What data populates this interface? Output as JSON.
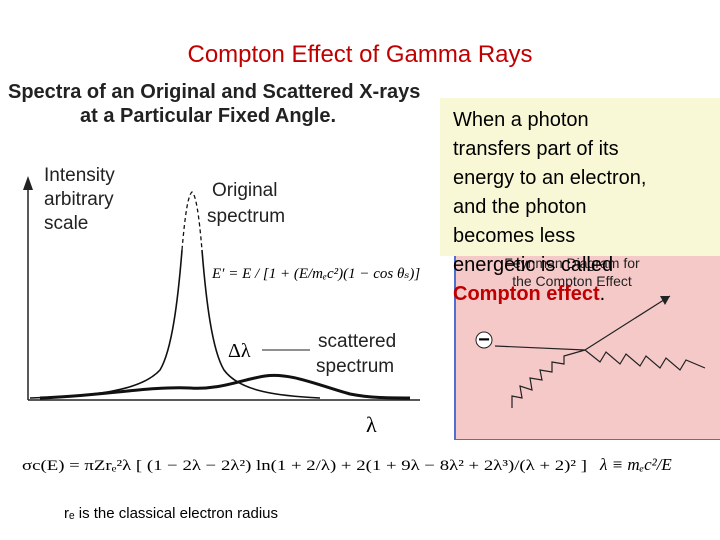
{
  "title": "Compton Effect of Gamma Rays",
  "figure": {
    "heading": [
      "Spectra of an Original and Scattered X-rays",
      "at a Particular Fixed Angle."
    ],
    "y_axis_label": [
      "Intensity",
      "arbitrary",
      "scale"
    ],
    "original_label": [
      "Original",
      "spectrum"
    ],
    "energy_formula": "E′ = E / [1 + (E/mₑc²)(1 − cos θₛ)]",
    "shift_label": "Δλ",
    "scattered_label": [
      "scattered",
      "spectrum"
    ],
    "x_axis_label": "λ"
  },
  "textbox": {
    "lines": [
      "When a photon",
      "transfers part of its",
      "energy to an electron,",
      "and the photon",
      "becomes less",
      "energetic is called"
    ],
    "emphasis": "Compton effect",
    "end": "."
  },
  "diagram": {
    "title": [
      "Feynman Diagram for",
      "the Compton Effect"
    ],
    "particle": "−"
  },
  "cross_section_formula": "σc(E) = πZrₑ²λ [ (1 − 2λ − 2λ²) ln(1 + 2/λ) + 2(1 + 9λ − 8λ² + 2λ³)/(λ + 2)² ]",
  "lambda_definition": "λ ≡ mₑc²/E",
  "note": "rₑ is the classical electron radius"
}
